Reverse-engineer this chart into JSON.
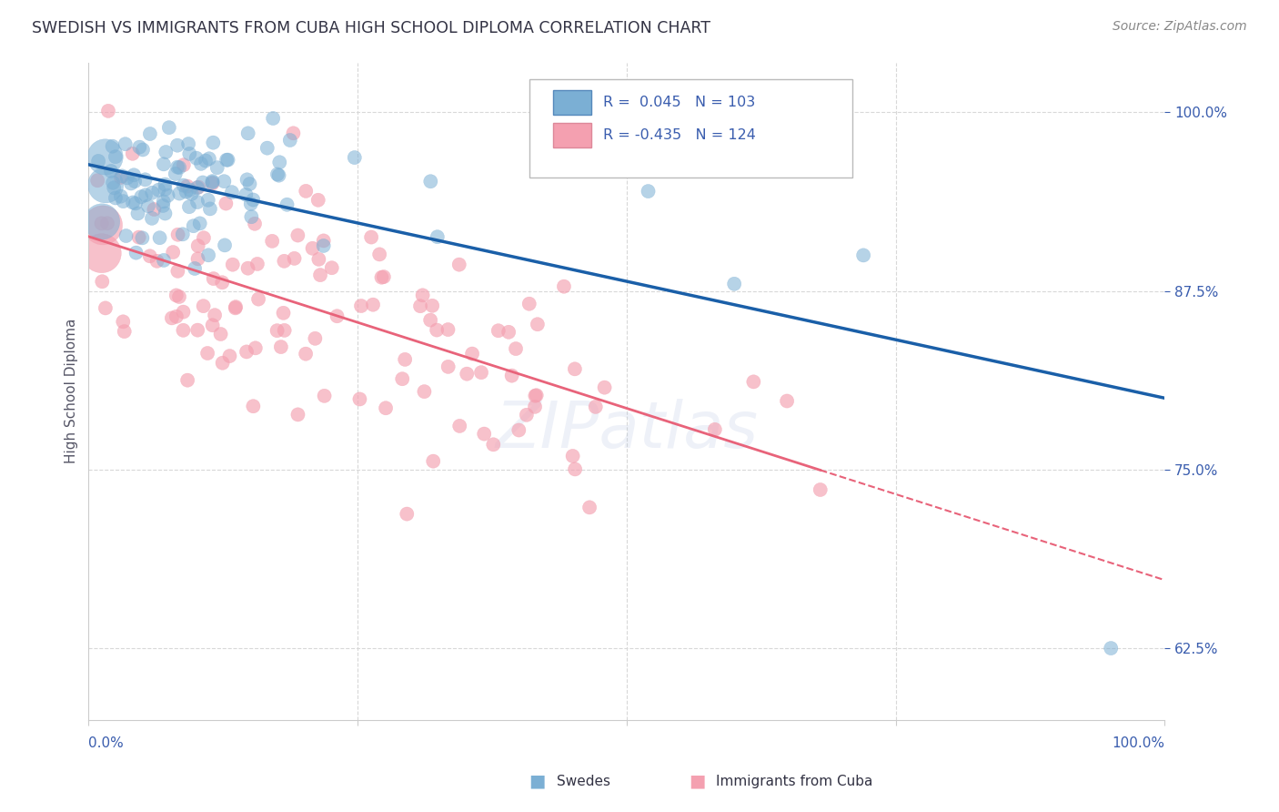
{
  "title": "SWEDISH VS IMMIGRANTS FROM CUBA HIGH SCHOOL DIPLOMA CORRELATION CHART",
  "source": "Source: ZipAtlas.com",
  "ylabel": "High School Diploma",
  "legend_blue_label": "Swedes",
  "legend_pink_label": "Immigrants from Cuba",
  "blue_R": 0.045,
  "blue_N": 103,
  "pink_R": -0.435,
  "pink_N": 124,
  "blue_color": "#7BAFD4",
  "pink_color": "#F4A0B0",
  "blue_line_color": "#1A5FA8",
  "pink_line_color": "#E8637A",
  "axis_label_color": "#3A5DAE",
  "title_color": "#333344",
  "source_color": "#888888",
  "background_color": "#FFFFFF",
  "grid_color": "#D8D8D8",
  "ylabel_color": "#555566",
  "y_ticks": [
    0.625,
    0.75,
    0.875,
    1.0
  ],
  "y_tick_labels": [
    "62.5%",
    "75.0%",
    "87.5%",
    "100.0%"
  ],
  "x_lim": [
    0.0,
    1.0
  ],
  "y_lim": [
    0.575,
    1.035
  ],
  "figsize": [
    14.06,
    8.92
  ],
  "dpi": 100,
  "dot_size_small": 120,
  "dot_size_large": 800,
  "alpha_blue": 0.55,
  "alpha_pink": 0.65
}
